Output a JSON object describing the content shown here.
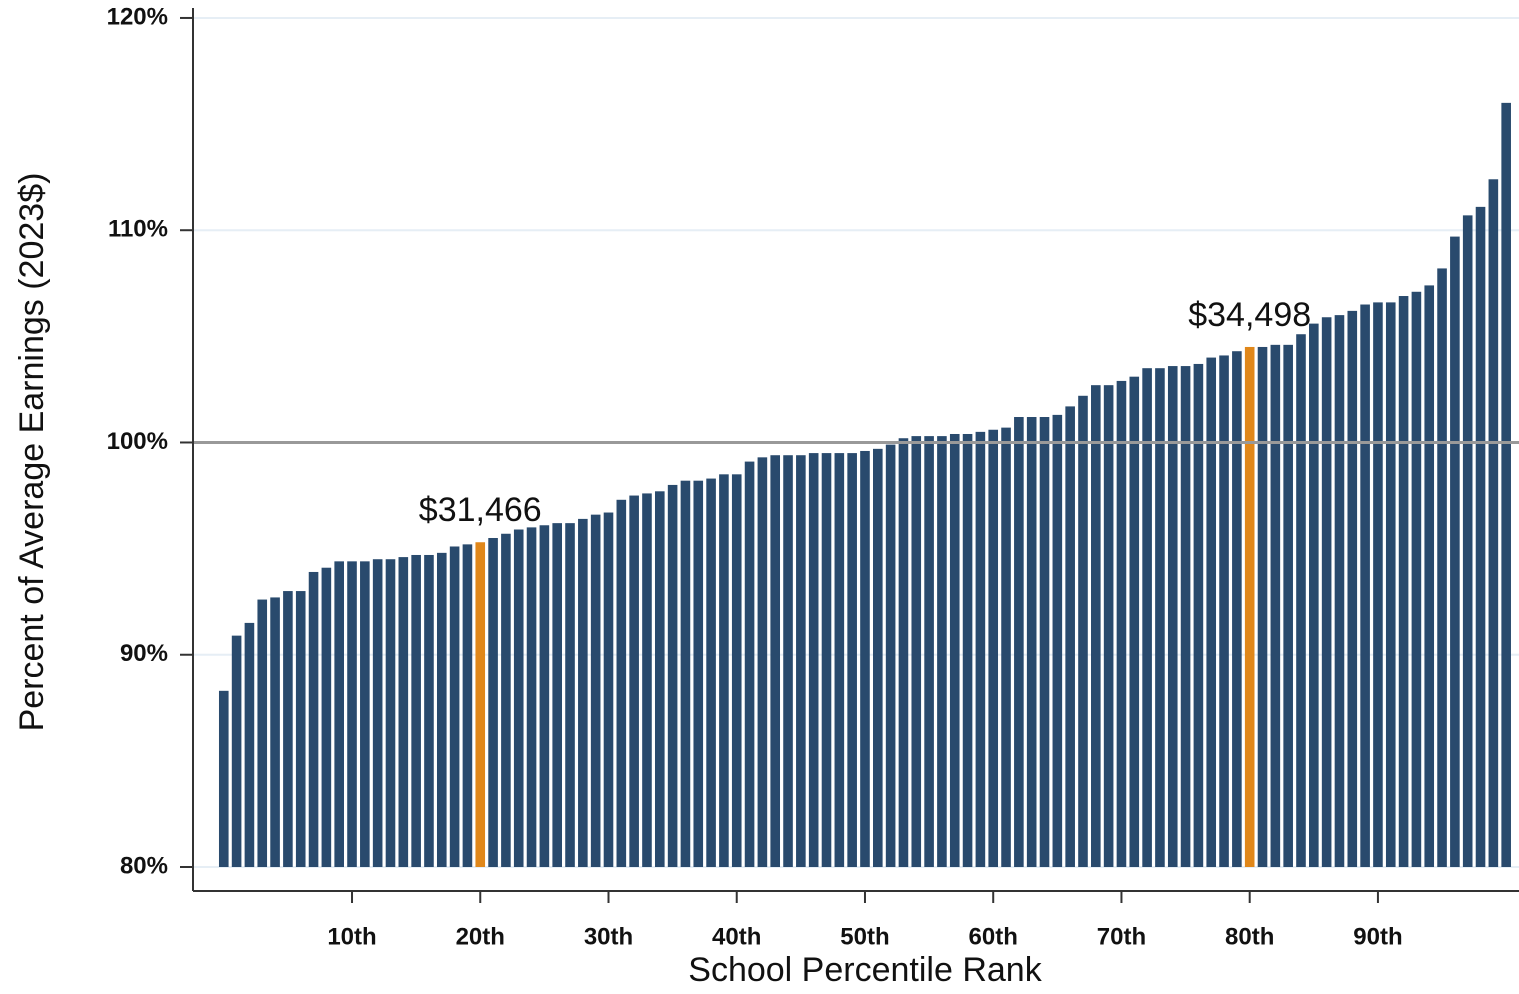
{
  "chart_data": {
    "type": "bar",
    "x_label": "School Percentile Rank",
    "y_label": "Percent of Average Earnings (2023$)",
    "x": [
      0,
      1,
      2,
      3,
      4,
      5,
      6,
      7,
      8,
      9,
      10,
      11,
      12,
      13,
      14,
      15,
      16,
      17,
      18,
      19,
      20,
      21,
      22,
      23,
      24,
      25,
      26,
      27,
      28,
      29,
      30,
      31,
      32,
      33,
      34,
      35,
      36,
      37,
      38,
      39,
      40,
      41,
      42,
      43,
      44,
      45,
      46,
      47,
      48,
      49,
      50,
      51,
      52,
      53,
      54,
      55,
      56,
      57,
      58,
      59,
      60,
      61,
      62,
      63,
      64,
      65,
      66,
      67,
      68,
      69,
      70,
      71,
      72,
      73,
      74,
      75,
      76,
      77,
      78,
      79,
      80,
      81,
      82,
      83,
      84,
      85,
      86,
      87,
      88,
      89,
      90,
      91,
      92,
      93,
      94,
      95,
      96,
      97,
      98,
      99,
      100
    ],
    "values": [
      88.3,
      90.9,
      91.5,
      92.6,
      92.7,
      93.0,
      93.0,
      93.9,
      94.1,
      94.4,
      94.4,
      94.4,
      94.5,
      94.5,
      94.6,
      94.7,
      94.7,
      94.8,
      95.1,
      95.2,
      95.3,
      95.5,
      95.7,
      95.9,
      96.0,
      96.1,
      96.2,
      96.2,
      96.4,
      96.6,
      96.7,
      97.3,
      97.5,
      97.6,
      97.7,
      98.0,
      98.2,
      98.2,
      98.3,
      98.5,
      98.5,
      99.1,
      99.3,
      99.4,
      99.4,
      99.4,
      99.5,
      99.5,
      99.5,
      99.5,
      99.6,
      99.7,
      99.9,
      100.2,
      100.3,
      100.3,
      100.3,
      100.4,
      100.4,
      100.5,
      100.6,
      100.7,
      101.2,
      101.2,
      101.2,
      101.3,
      101.7,
      102.2,
      102.7,
      102.7,
      102.9,
      103.1,
      103.5,
      103.5,
      103.6,
      103.6,
      103.7,
      104.0,
      104.1,
      104.3,
      104.5,
      104.5,
      104.6,
      104.6,
      105.1,
      105.6,
      105.9,
      106.0,
      106.2,
      106.5,
      106.6,
      106.6,
      106.9,
      107.1,
      107.4,
      108.2,
      109.7,
      110.7,
      111.1,
      112.4,
      116.0
    ],
    "color": "#294a6d",
    "highlight_color": "#e0871a",
    "annotations": [
      {
        "text": "$31,466",
        "x": 20
      },
      {
        "text": "$34,498",
        "x": 80
      }
    ],
    "reference_line": 100,
    "xlim": [
      -2.4,
      101
    ],
    "ylim": [
      80,
      121.6
    ],
    "xticks": [
      {
        "value": 10,
        "label": "10th"
      },
      {
        "value": 20,
        "label": "20th"
      },
      {
        "value": 30,
        "label": "30th"
      },
      {
        "value": 40,
        "label": "40th"
      },
      {
        "value": 50,
        "label": "50th"
      },
      {
        "value": 60,
        "label": "60th"
      },
      {
        "value": 70,
        "label": "70th"
      },
      {
        "value": 80,
        "label": "80th"
      },
      {
        "value": 90,
        "label": "90th"
      }
    ],
    "yticks": [
      {
        "value": 80,
        "label": "80%"
      },
      {
        "value": 90,
        "label": "90%"
      },
      {
        "value": 100,
        "label": "100%"
      },
      {
        "value": 110,
        "label": "110%"
      },
      {
        "value": 120,
        "label": "120%"
      }
    ],
    "grid": true
  }
}
